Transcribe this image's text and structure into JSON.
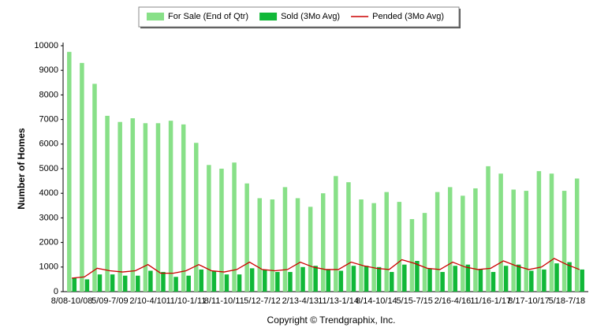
{
  "chart_data": {
    "type": "bar_line",
    "y_label": "Number of Homes",
    "copyright": "Copyright © Trendgraphix, Inc.",
    "categories": [
      "8/08-10/08",
      null,
      null,
      "5/09-7/09",
      null,
      null,
      "2/10-4/10",
      null,
      null,
      "11/10-1/11",
      null,
      null,
      "8/11-10/11",
      null,
      null,
      "5/12-7/12",
      null,
      null,
      "2/13-4/13",
      null,
      null,
      "11/13-1/14",
      null,
      null,
      "8/14-10/14",
      null,
      null,
      "5/15-7/15",
      null,
      null,
      "2/16-4/16",
      null,
      null,
      "11/16-1/17",
      null,
      null,
      "8/17-10/17",
      null,
      null,
      "5/18-7/18",
      null
    ],
    "series": [
      {
        "name": "For Sale (End of Qtr)",
        "color": "#88e088",
        "kind": "bar",
        "values": [
          9750,
          9300,
          8450,
          7150,
          6900,
          7050,
          6850,
          6850,
          6950,
          6800,
          6050,
          5150,
          5000,
          5250,
          4400,
          3800,
          3750,
          4250,
          3800,
          3450,
          4000,
          4700,
          4450,
          3750,
          3600,
          4050,
          3650,
          2950,
          3200,
          4050,
          4250,
          3900,
          4200,
          5100,
          4800,
          4150,
          4100,
          4900,
          4800,
          4100,
          4600
        ]
      },
      {
        "name": "Sold (3Mo Avg)",
        "color": "#11b838",
        "kind": "bar",
        "values": [
          550,
          500,
          700,
          700,
          650,
          650,
          850,
          800,
          600,
          650,
          900,
          850,
          700,
          700,
          950,
          900,
          800,
          800,
          1000,
          1050,
          900,
          850,
          1050,
          1050,
          1000,
          800,
          1100,
          1250,
          950,
          800,
          1050,
          1100,
          900,
          800,
          1050,
          1100,
          850,
          900,
          1150,
          1200,
          900
        ]
      },
      {
        "name": "Pended (3Mo Avg)",
        "color": "#cc0000",
        "kind": "line",
        "values": [
          550,
          600,
          950,
          850,
          800,
          850,
          1100,
          750,
          750,
          850,
          1100,
          850,
          800,
          900,
          1200,
          900,
          850,
          900,
          1200,
          1000,
          900,
          900,
          1200,
          1050,
          950,
          900,
          1300,
          1150,
          950,
          900,
          1200,
          1000,
          900,
          950,
          1250,
          1050,
          900,
          1000,
          1350,
          1100,
          900
        ]
      }
    ],
    "ylim": [
      0,
      10000
    ],
    "yticks": [
      0,
      1000,
      2000,
      3000,
      4000,
      5000,
      6000,
      7000,
      8000,
      9000,
      10000
    ]
  }
}
